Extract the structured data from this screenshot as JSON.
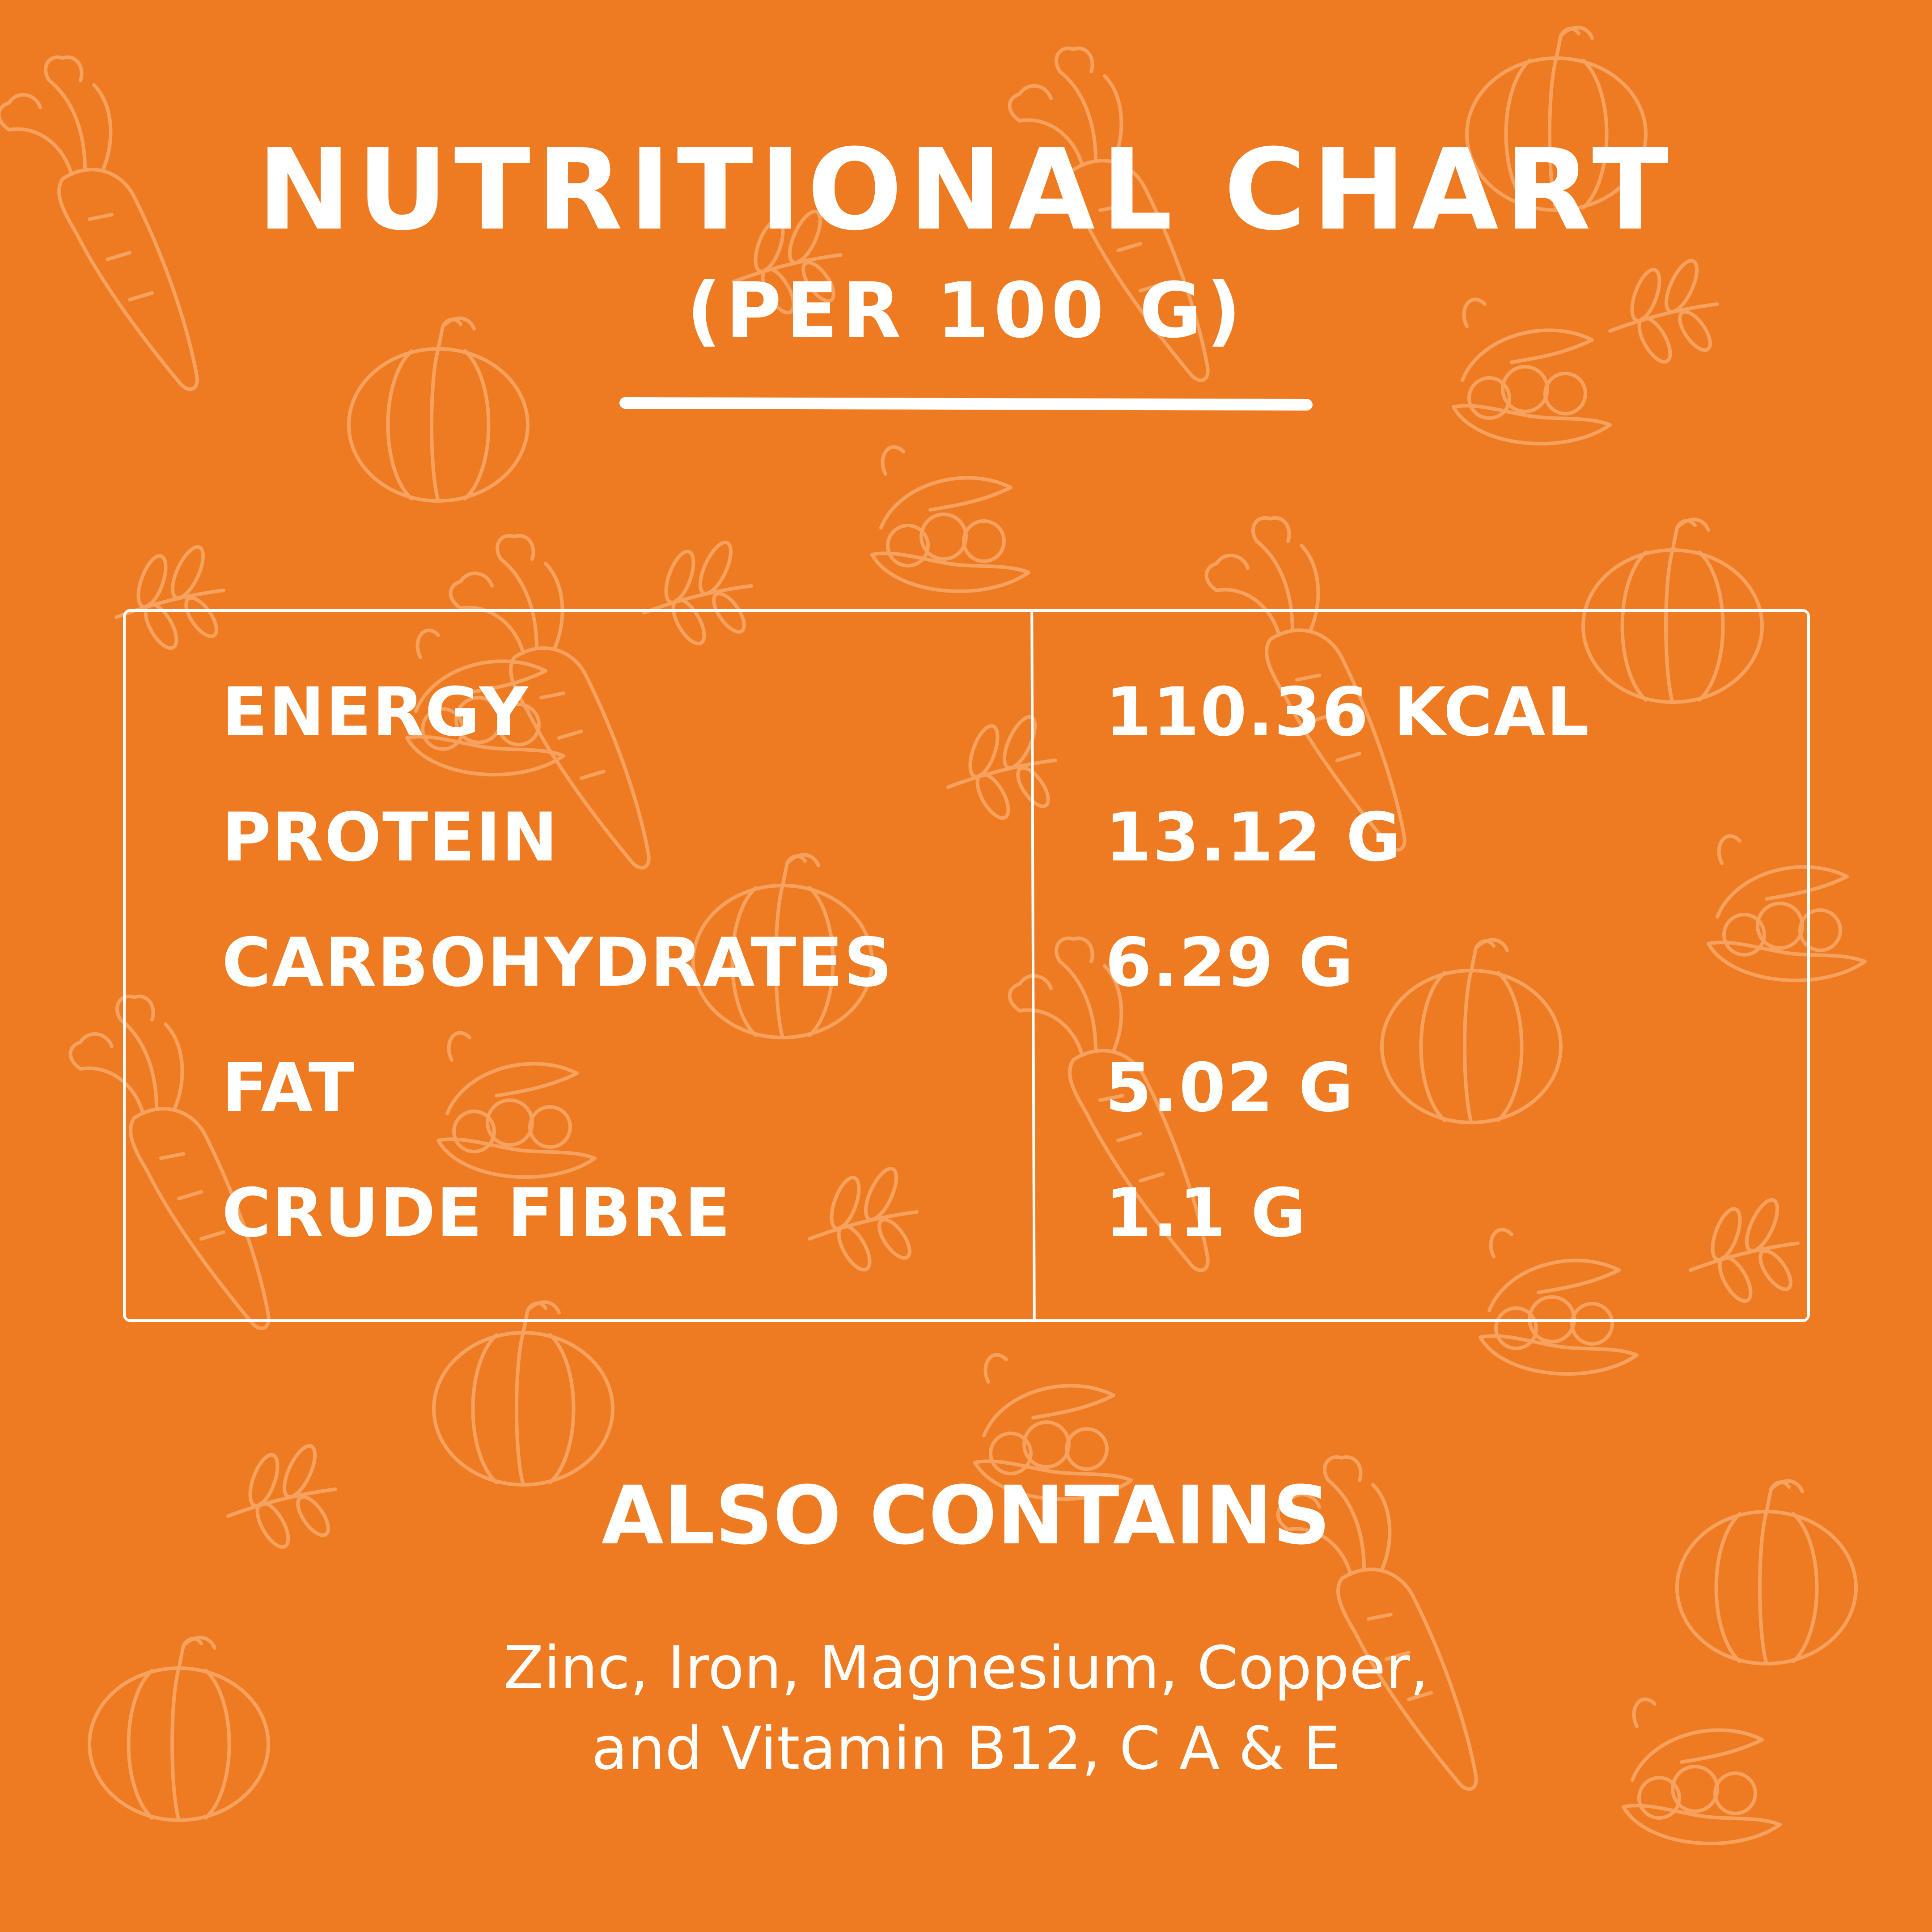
{
  "title": "NUTRITIONAL CHART",
  "subtitle": "(PER 100 G)",
  "nutrients": [
    {
      "label": "ENERGY",
      "value": "110.36 KCAL"
    },
    {
      "label": "PROTEIN",
      "value": "13.12 G"
    },
    {
      "label": "CARBOHYDRATES",
      "value": "6.29 G"
    },
    {
      "label": "FAT",
      "value": "5.02 G"
    },
    {
      "label": "CRUDE FIBRE",
      "value": "1.1 G"
    }
  ],
  "also_contains": {
    "heading": "ALSO CONTAINS",
    "line1": "Zinc, Iron, Magnesium, Copper,",
    "line2": "and Vitamin B12, C A & E"
  },
  "colors": {
    "background": "#EE7A22",
    "text": "#FFFFFF",
    "pattern": "#F6A25E"
  },
  "background_pattern": [
    "carrot-icon",
    "pumpkin-icon",
    "pea-pod-icon",
    "leaf-sprig-icon"
  ]
}
